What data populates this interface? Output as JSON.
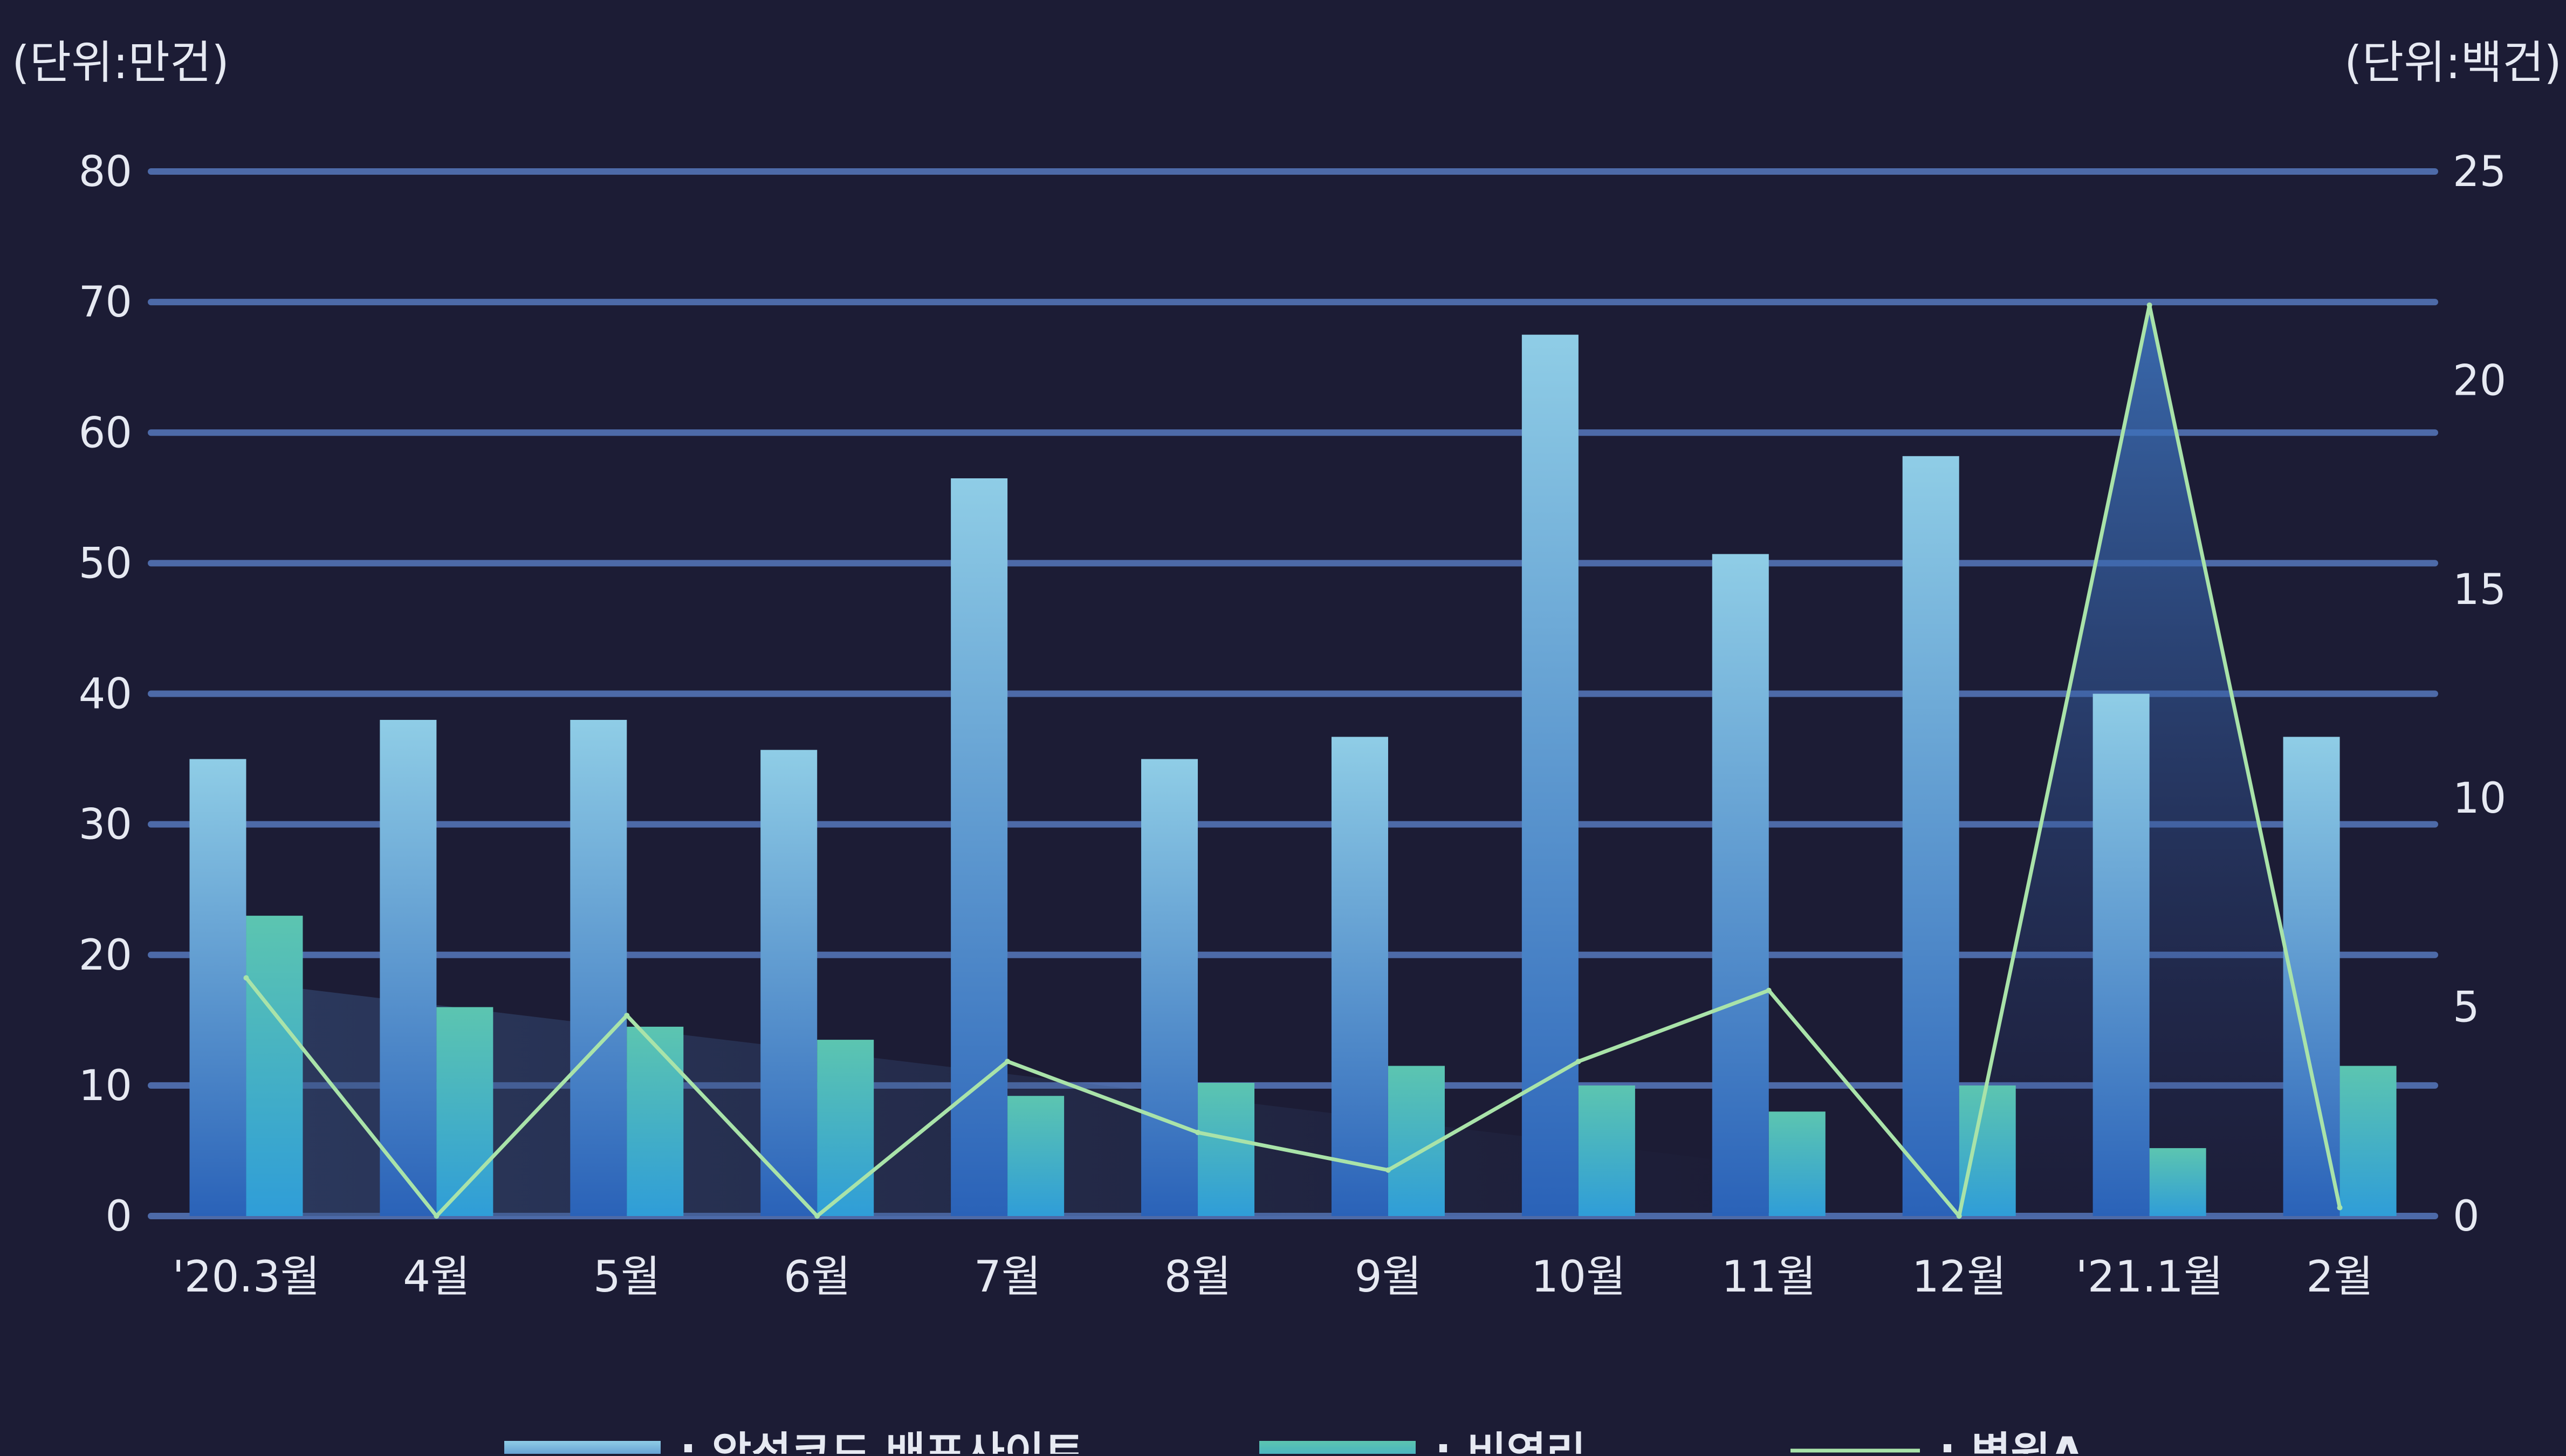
{
  "chart_data": {
    "type": "bar",
    "left_unit": "(단위:만건)",
    "right_unit": "(단위:백건)",
    "categories": [
      "'20.3월",
      "4월",
      "5월",
      "6월",
      "7월",
      "8월",
      "9월",
      "10월",
      "11월",
      "12월",
      "'21.1월",
      "2월"
    ],
    "y_left": {
      "ticks": [
        "0",
        "10",
        "20",
        "30",
        "40",
        "50",
        "60",
        "70",
        "80"
      ],
      "ylim": [
        0,
        80
      ]
    },
    "y_right": {
      "ticks": [
        "0",
        "5",
        "10",
        "15",
        "20",
        "25"
      ],
      "ylim": [
        0,
        25
      ]
    },
    "grid": true,
    "legend_position": "bottom",
    "series": [
      {
        "name": "악성코드 배포사이트",
        "kind": "bar",
        "axis": "left",
        "values": [
          35,
          38,
          38,
          35.7,
          56.5,
          35,
          36.7,
          67.5,
          50.7,
          58.2,
          40,
          36.7
        ],
        "color_top": "#8fcde6",
        "color_bottom": "#2a62b8"
      },
      {
        "name": "비영리",
        "kind": "bar",
        "axis": "left",
        "values": [
          23,
          16,
          14.5,
          13.5,
          9.2,
          10.2,
          11.5,
          10,
          8,
          10,
          5.2,
          11.5
        ],
        "color_top": "#5cc5b0",
        "color_bottom": "#2f9dd8"
      },
      {
        "name": "병원A",
        "kind": "line",
        "axis": "right",
        "values": [
          5.7,
          0,
          4.8,
          0,
          3.7,
          2,
          1.1,
          3.7,
          5.4,
          0,
          21.8,
          0.2
        ],
        "color": "#a9e3a9"
      }
    ]
  }
}
